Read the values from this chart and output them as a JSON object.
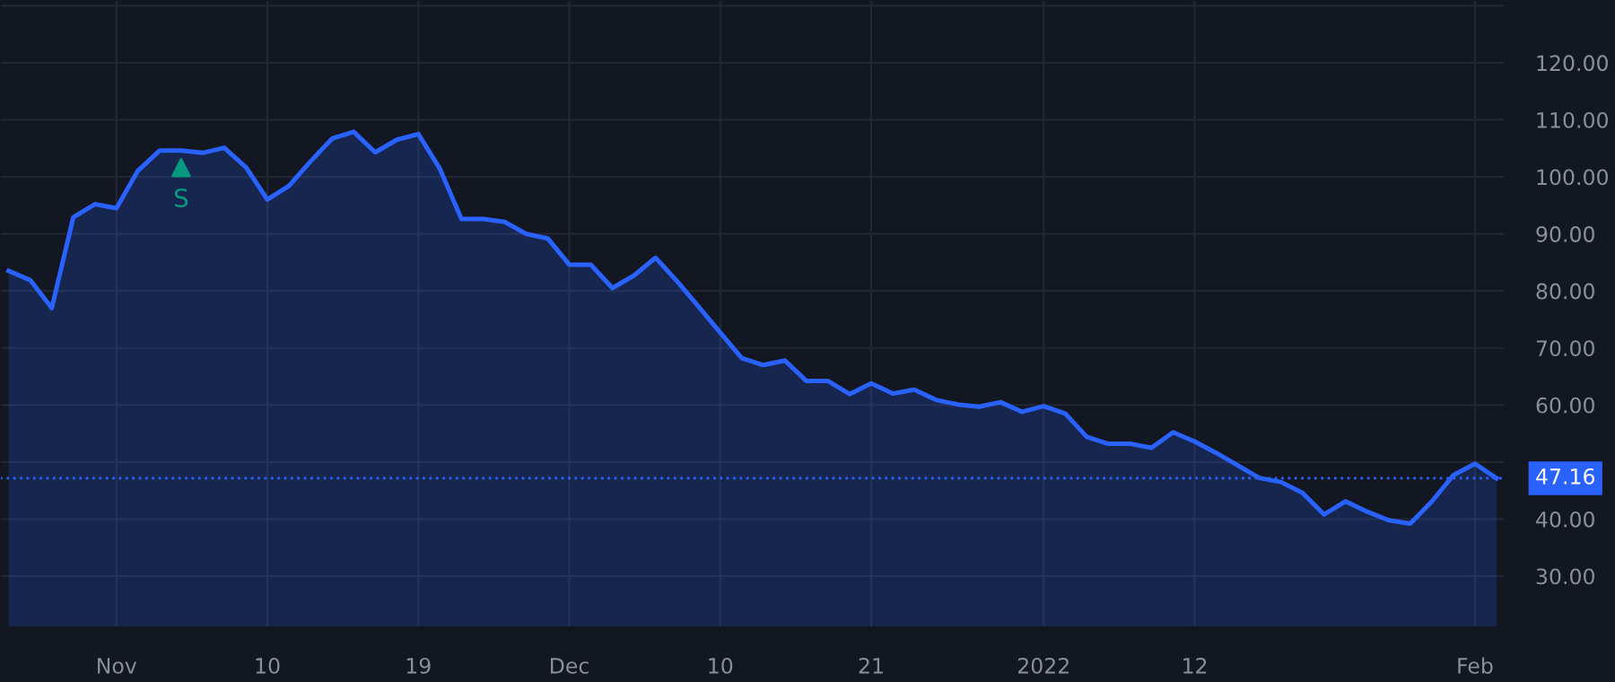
{
  "chart_data": {
    "type": "area",
    "categories": [
      null,
      null,
      null,
      null,
      null,
      "Nov",
      null,
      null,
      null,
      null,
      null,
      null,
      "10",
      null,
      null,
      null,
      null,
      null,
      null,
      "19",
      null,
      null,
      null,
      null,
      null,
      null,
      "Dec",
      null,
      null,
      null,
      null,
      null,
      null,
      "10",
      null,
      null,
      null,
      null,
      null,
      null,
      "21",
      null,
      null,
      null,
      null,
      null,
      null,
      null,
      "2022",
      null,
      null,
      null,
      null,
      null,
      null,
      "12",
      null,
      null,
      null,
      null,
      null,
      null,
      null,
      null,
      null,
      null,
      null,
      null,
      "Feb",
      null
    ],
    "series": [
      {
        "color": "#2962ff",
        "values": [
          83.5,
          81.9,
          77.0,
          92.9,
          95.2,
          94.5,
          101.1,
          104.6,
          104.6,
          104.2,
          105.1,
          101.7,
          96.0,
          98.4,
          102.7,
          106.7,
          107.9,
          104.3,
          106.5,
          107.5,
          101.4,
          92.6,
          92.6,
          92.1,
          90.0,
          89.2,
          84.6,
          84.6,
          80.5,
          82.7,
          85.8,
          81.7,
          77.2,
          72.7,
          68.2,
          67.0,
          67.8,
          64.2,
          64.2,
          61.9,
          63.8,
          62.0,
          62.7,
          60.9,
          60.1,
          59.7,
          60.5,
          58.8,
          59.8,
          58.5,
          54.4,
          53.2,
          53.2,
          52.5,
          55.2,
          53.6,
          51.6,
          49.4,
          47.2,
          46.5,
          44.6,
          40.8,
          43.1,
          41.3,
          39.8,
          39.2,
          43.1,
          47.7,
          49.7,
          47.16
        ]
      },
      {
        "type": "scatter",
        "name": "S",
        "color": "#089981",
        "marker": "triangle",
        "values": [
          null,
          null,
          null,
          null,
          null,
          null,
          null,
          null,
          101.6,
          null,
          null,
          null,
          null,
          null,
          null,
          null,
          null,
          null,
          null,
          null,
          null,
          null,
          null,
          null,
          null,
          null,
          null,
          null,
          null,
          null,
          null,
          null,
          null,
          null,
          null,
          null,
          null,
          null,
          null,
          null,
          null,
          null,
          null,
          null,
          null,
          null,
          null,
          null,
          null,
          null,
          null,
          null,
          null,
          null,
          null,
          null,
          null,
          null,
          null,
          null,
          null,
          null,
          null,
          null,
          null,
          null,
          null,
          null,
          null,
          null
        ]
      }
    ],
    "ref_lines": [
      {
        "axis": "y",
        "value": 47.16,
        "label": "47.16",
        "color": "#2962ff",
        "line_style": "dotted"
      }
    ],
    "ylim": [
      21,
      131
    ],
    "yticks": [
      {
        "value": 30,
        "label": "30.00"
      },
      {
        "value": 40,
        "label": "40.00"
      },
      {
        "value": 50,
        "label": null
      },
      {
        "value": 60,
        "label": "60.00"
      },
      {
        "value": 70,
        "label": "70.00"
      },
      {
        "value": 80,
        "label": "80.00"
      },
      {
        "value": 90,
        "label": "90.00"
      },
      {
        "value": 100,
        "label": "100.00"
      },
      {
        "value": 110,
        "label": "110.00"
      },
      {
        "value": 120,
        "label": "120.00"
      },
      {
        "value": 130,
        "label": null
      }
    ],
    "grid": true,
    "legend": false
  }
}
